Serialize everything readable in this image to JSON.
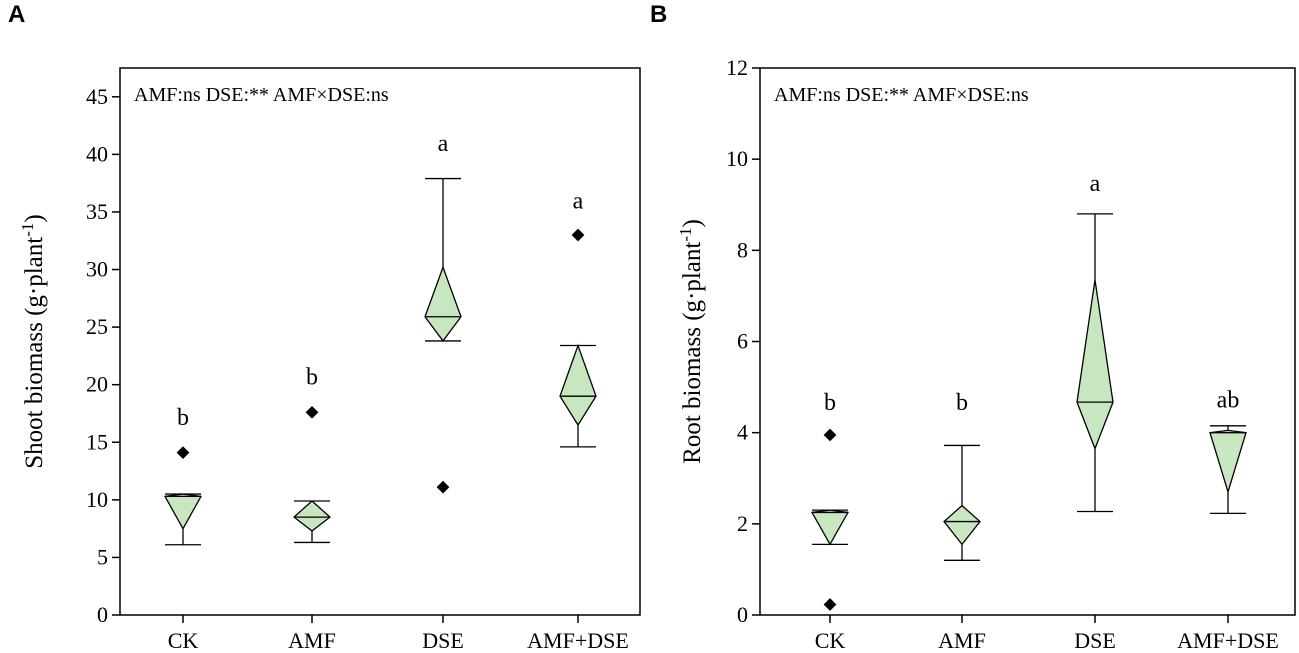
{
  "chart_data": [
    {
      "panel": "A",
      "type": "diamond-box",
      "ylabel": "Shoot biomass (g·plant",
      "ylabel_sup": "-1",
      "ylabel_close": ")",
      "ylim": [
        0,
        47.5
      ],
      "yticks": [
        0,
        5,
        10,
        15,
        20,
        25,
        30,
        35,
        40,
        45
      ],
      "annotation": "AMF:ns  DSE:**   AMF×DSE:ns",
      "categories": [
        "CK",
        "AMF",
        "DSE",
        "AMF+DSE"
      ],
      "groups": [
        {
          "name": "CK",
          "min": 6.1,
          "q1": 7.5,
          "median": 10.3,
          "q3": 10.5,
          "max": 10.5,
          "outliers": [
            14.1
          ],
          "letter": "b",
          "letter_y": 16.5
        },
        {
          "name": "AMF",
          "min": 6.3,
          "q1": 7.3,
          "median": 8.5,
          "q3": 9.9,
          "max": 9.9,
          "outliers": [
            17.6
          ],
          "letter": "b",
          "letter_y": 20.0
        },
        {
          "name": "DSE",
          "min": 23.8,
          "q1": 23.8,
          "median": 25.9,
          "q3": 30.2,
          "max": 37.9,
          "outliers": [
            11.1
          ],
          "letter": "a",
          "letter_y": 40.3
        },
        {
          "name": "AMF+DSE",
          "min": 14.6,
          "q1": 16.5,
          "median": 19.0,
          "q3": 23.4,
          "max": 23.4,
          "outliers": [
            33.0
          ],
          "letter": "a",
          "letter_y": 35.3
        }
      ]
    },
    {
      "panel": "B",
      "type": "diamond-box",
      "ylabel": "Root biomass (g·plant",
      "ylabel_sup": "-1",
      "ylabel_close": ")",
      "ylim": [
        0,
        12
      ],
      "yticks": [
        0,
        2,
        4,
        6,
        8,
        10,
        12
      ],
      "annotation": "AMF:ns  DSE:**   AMF×DSE:ns",
      "categories": [
        "CK",
        "AMF",
        "DSE",
        "AMF+DSE"
      ],
      "groups": [
        {
          "name": "CK",
          "min": 1.55,
          "q1": 1.55,
          "median": 2.25,
          "q3": 2.3,
          "max": 2.3,
          "outliers": [
            3.95,
            0.23
          ],
          "letter": "b",
          "letter_y": 4.5
        },
        {
          "name": "AMF",
          "min": 1.2,
          "q1": 1.55,
          "median": 2.05,
          "q3": 2.4,
          "max": 3.72,
          "outliers": [],
          "letter": "b",
          "letter_y": 4.5
        },
        {
          "name": "DSE",
          "min": 2.27,
          "q1": 3.65,
          "median": 4.67,
          "q3": 7.35,
          "max": 8.8,
          "outliers": [],
          "letter": "a",
          "letter_y": 9.3
        },
        {
          "name": "AMF+DSE",
          "min": 2.23,
          "q1": 2.7,
          "median": 4.0,
          "q3": 4.05,
          "max": 4.15,
          "outliers": [],
          "letter": "ab",
          "letter_y": 4.55
        }
      ]
    }
  ]
}
